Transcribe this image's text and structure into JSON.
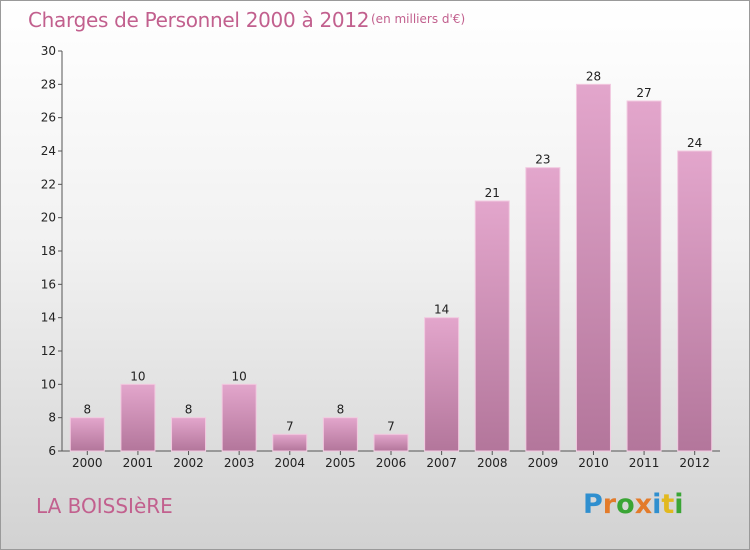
{
  "header": {
    "title": "Charges de Personnel 2000 à 2012",
    "unit": "(en milliers d'€)"
  },
  "footer": {
    "town": "LA BOISSIèRE",
    "logo_letters": [
      {
        "char": "P",
        "color": "#2f8fcf"
      },
      {
        "char": "r",
        "color": "#e37b2a"
      },
      {
        "char": "o",
        "color": "#3aa535"
      },
      {
        "char": "x",
        "color": "#e37b2a"
      },
      {
        "char": "i",
        "color": "#2f8fcf"
      },
      {
        "char": "t",
        "color": "#e2b91f"
      },
      {
        "char": "i",
        "color": "#3aa535"
      }
    ]
  },
  "chart_data": {
    "type": "bar",
    "categories": [
      "2000",
      "2001",
      "2002",
      "2003",
      "2004",
      "2005",
      "2006",
      "2007",
      "2008",
      "2009",
      "2010",
      "2011",
      "2012"
    ],
    "values": [
      8,
      10,
      8,
      10,
      7,
      8,
      7,
      14,
      21,
      23,
      28,
      27,
      24
    ],
    "data_labels": [
      "8",
      "10",
      "8",
      "10",
      "7",
      "8",
      "7",
      "14",
      "21",
      "23",
      "28",
      "27",
      "24"
    ],
    "y_ticks": [
      "6",
      "8",
      "10",
      "12",
      "14",
      "16",
      "18",
      "20",
      "22",
      "24",
      "26",
      "28",
      "30"
    ],
    "ylim": [
      6,
      30
    ],
    "grid": false,
    "bar_color_top": "#e3a6cc",
    "bar_color_bottom": "#b3769b",
    "text_color": "#222222",
    "axis_color": "#555555"
  }
}
